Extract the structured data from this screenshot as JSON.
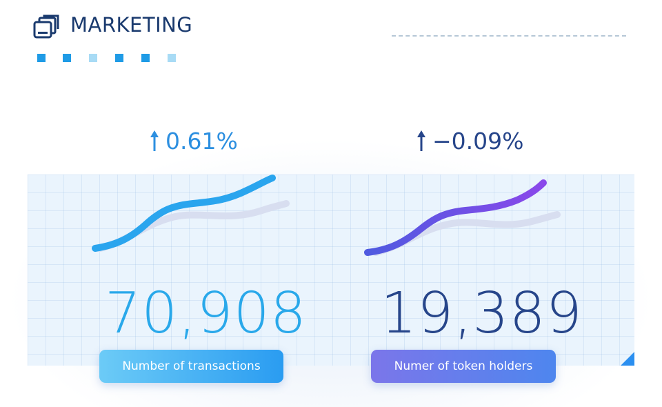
{
  "header": {
    "title": "MARKETING",
    "logo_icon": "stacked-windows-icon",
    "square_colors": [
      "#1f9be6",
      "#1f9be6",
      "#a8dbf5",
      "#1f9be6",
      "#1f9be6",
      "#a8dbf5"
    ]
  },
  "stats": [
    {
      "change": "0.61%",
      "change_icon": "arrow-up-icon",
      "value": "70,908",
      "label": "Number of  transactions",
      "line_color": "#2aa5ee"
    },
    {
      "change": "−0.09%",
      "change_icon": "arrow-up-icon",
      "value": "19,389",
      "label": "Numer of token holders",
      "line_color": "#7a46e6"
    }
  ],
  "colors": {
    "accent_blue": "#2a9cf1",
    "dark_navy": "#26458a",
    "purple": "#7a46e6"
  }
}
